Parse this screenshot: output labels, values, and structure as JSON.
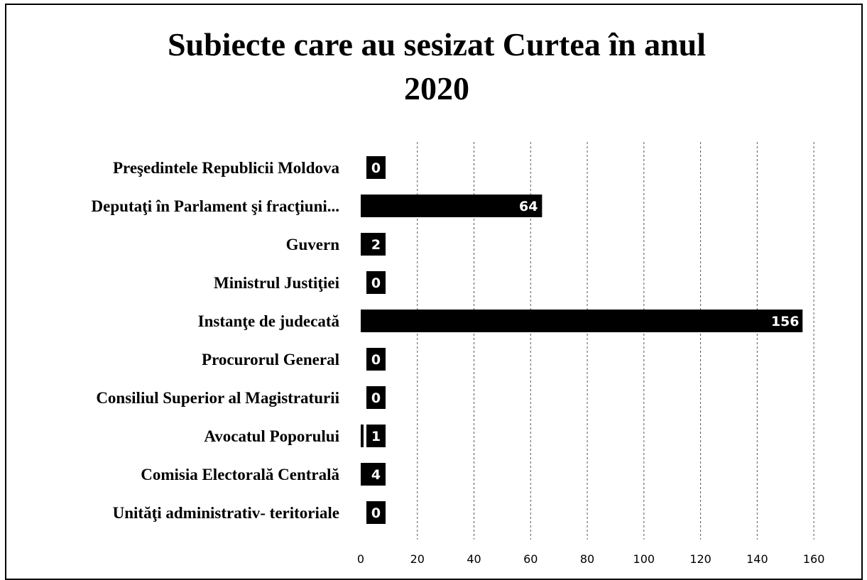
{
  "chart_data": {
    "type": "bar",
    "orientation": "horizontal",
    "title": "Subiecte care au sesizat Curtea în anul 2020",
    "categories": [
      "Preşedintele Republicii Moldova",
      "Deputaţi în Parlament şi fracţiuni...",
      "Guvern",
      "Ministrul Justiţiei",
      "Instanţe de judecată",
      "Procurorul General",
      "Consiliul Superior al Magistraturii",
      "Avocatul Poporului",
      "Comisia Electorală Centrală",
      "Unităţi administrativ- teritoriale"
    ],
    "values": [
      0,
      64,
      2,
      0,
      156,
      0,
      0,
      1,
      4,
      0
    ],
    "color": "#000000",
    "xlim": [
      0,
      170
    ],
    "xticks": [
      0,
      20,
      40,
      60,
      80,
      100,
      120,
      140,
      160
    ],
    "grid": true
  }
}
